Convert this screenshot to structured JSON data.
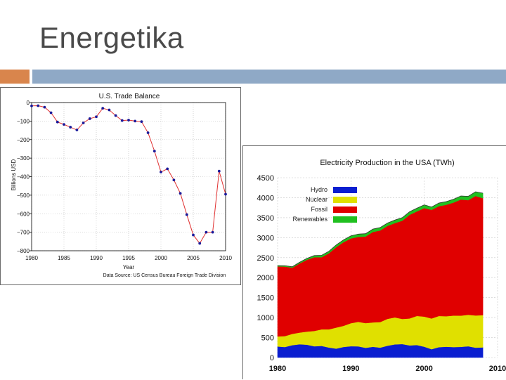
{
  "slide": {
    "title": "Energetika"
  },
  "chart_data": [
    {
      "type": "line",
      "title": "U.S. Trade Balance",
      "xlabel": "Year",
      "ylabel": "Billions USD",
      "source": "Data Source: US Census Bureau Foreign Trade Division",
      "x_ticks": [
        1980,
        1985,
        1990,
        1995,
        2000,
        2005,
        2010
      ],
      "y_ticks": [
        0,
        -100,
        -200,
        -300,
        -400,
        -500,
        -600,
        -700,
        -800
      ],
      "xlim": [
        1980,
        2010
      ],
      "ylim": [
        -800,
        0
      ],
      "grid": true,
      "line_color": "#e03030",
      "marker_color": "#1a1a9a",
      "series": [
        {
          "x": [
            1980,
            1981,
            1982,
            1983,
            1984,
            1985,
            1986,
            1987,
            1988,
            1989,
            1990,
            1991,
            1992,
            1993,
            1994,
            1995,
            1996,
            1997,
            1998,
            1999,
            2000,
            2001,
            2002,
            2003,
            2004,
            2005,
            2006,
            2007,
            2008,
            2009,
            2010
          ],
          "values": [
            -18,
            -17,
            -25,
            -55,
            -105,
            -118,
            -133,
            -148,
            -110,
            -87,
            -77,
            -31,
            -40,
            -70,
            -97,
            -95,
            -100,
            -103,
            -163,
            -262,
            -375,
            -358,
            -418,
            -490,
            -605,
            -715,
            -760,
            -700,
            -700,
            -370,
            -495
          ]
        }
      ]
    },
    {
      "type": "area",
      "title": "Electricity Production in the USA (TWh)",
      "x_ticks": [
        1980,
        1990,
        2000,
        2010
      ],
      "y_ticks": [
        0,
        500,
        1000,
        1500,
        2000,
        2500,
        3000,
        3500,
        4000,
        4500
      ],
      "xlim": [
        1980,
        2010
      ],
      "ylim": [
        0,
        4500
      ],
      "grid": true,
      "legend_position": "top-left",
      "stacked": true,
      "x": [
        1980,
        1981,
        1982,
        1983,
        1984,
        1985,
        1986,
        1987,
        1988,
        1989,
        1990,
        1991,
        1992,
        1993,
        1994,
        1995,
        1996,
        1997,
        1998,
        1999,
        2000,
        2001,
        2002,
        2003,
        2004,
        2005,
        2006,
        2007,
        2008
      ],
      "series": [
        {
          "name": "Hydro",
          "color": "#0a1ed0",
          "values": [
            276,
            263,
            309,
            332,
            321,
            281,
            291,
            250,
            223,
            265,
            283,
            280,
            243,
            269,
            248,
            296,
            329,
            337,
            304,
            313,
            271,
            208,
            260,
            270,
            262,
            267,
            282,
            247,
            254
          ]
        },
        {
          "name": "Nuclear",
          "color": "#e0e000",
          "values": [
            251,
            273,
            283,
            293,
            328,
            384,
            414,
            455,
            527,
            529,
            577,
            613,
            619,
            610,
            640,
            673,
            675,
            629,
            674,
            728,
            754,
            769,
            780,
            764,
            788,
            782,
            788,
            806,
            806
          ]
        },
        {
          "name": "Fossil",
          "color": "#e00000",
          "values": [
            1753,
            1740,
            1655,
            1729,
            1797,
            1845,
            1805,
            1903,
            2013,
            2092,
            2120,
            2125,
            2165,
            2263,
            2292,
            2325,
            2360,
            2457,
            2592,
            2616,
            2715,
            2718,
            2747,
            2788,
            2828,
            2905,
            2868,
            2990,
            2927
          ]
        },
        {
          "name": "Renewables",
          "color": "#20c020",
          "values": [
            20,
            22,
            25,
            30,
            35,
            42,
            47,
            52,
            56,
            60,
            66,
            70,
            72,
            72,
            74,
            73,
            76,
            77,
            78,
            80,
            81,
            72,
            79,
            80,
            83,
            88,
            96,
            105,
            126
          ]
        }
      ]
    }
  ]
}
